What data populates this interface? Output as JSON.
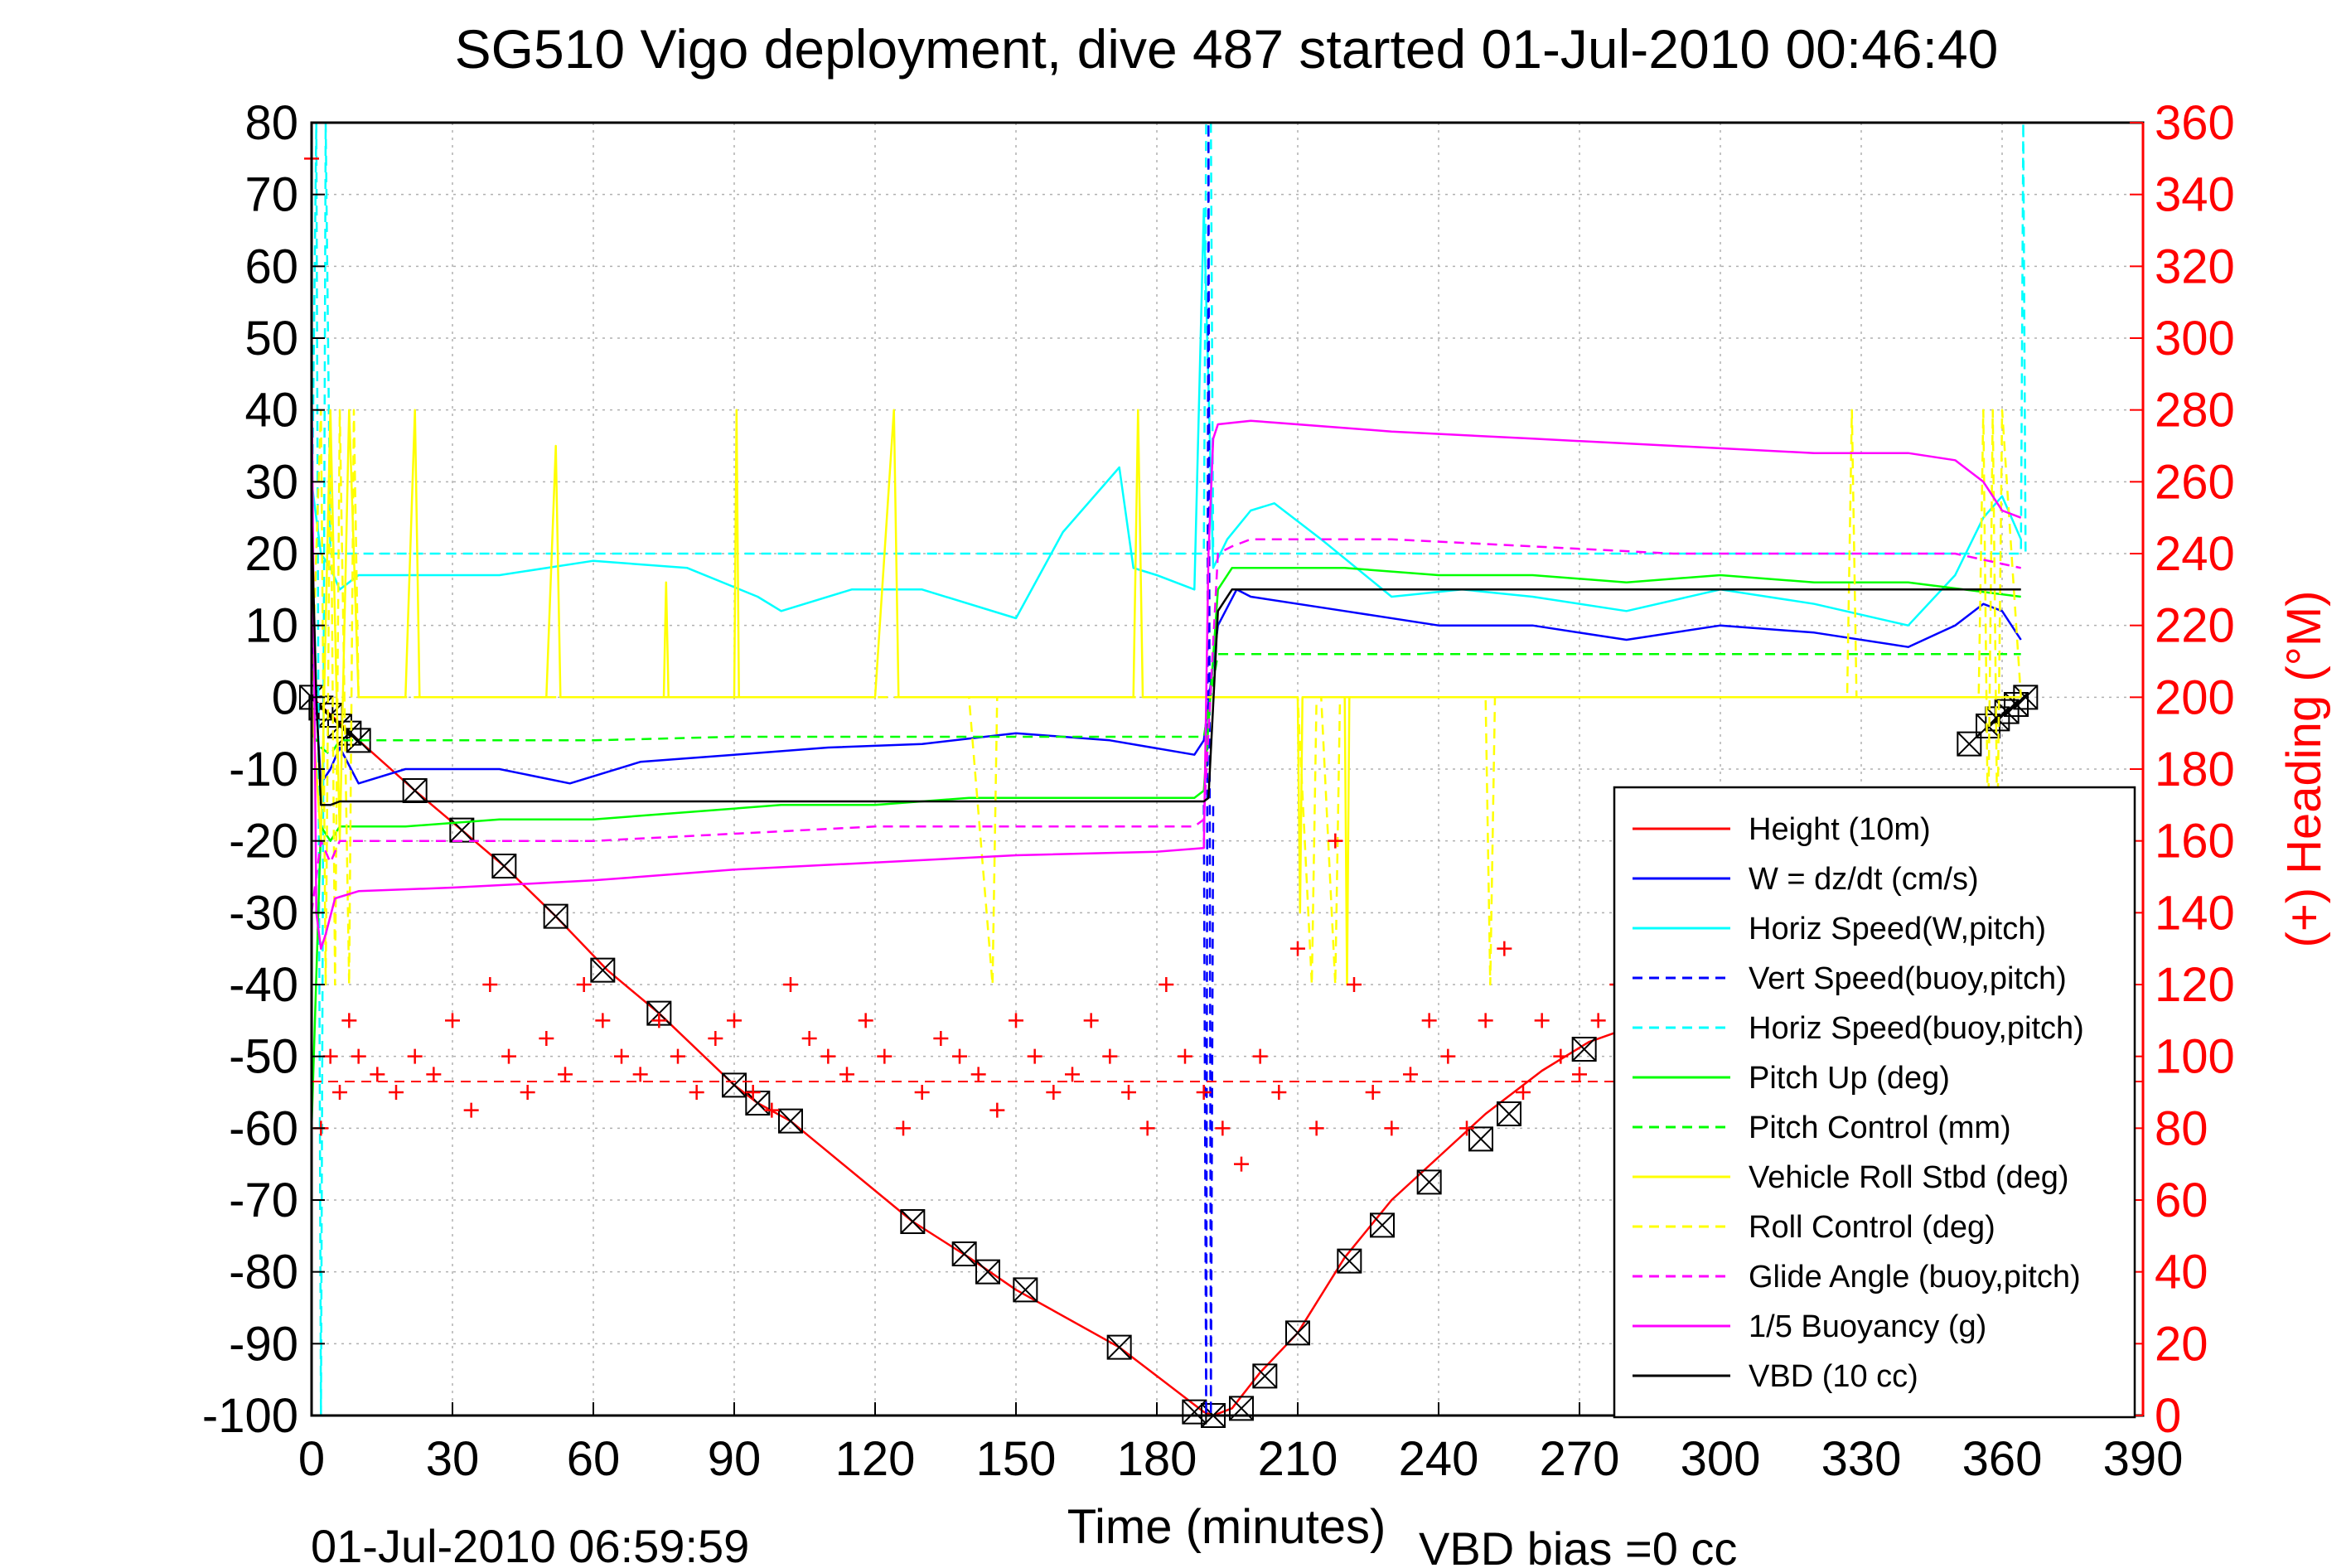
{
  "chart_data": {
    "type": "line",
    "title": "SG510 Vigo deployment, dive 487 started 01-Jul-2010 00:46:40",
    "xlabel": "Time (minutes)",
    "y2label": "(+) Heading (°M)",
    "footer_date": "01-Jul-2010 06:59:59",
    "footer_note": "VBD bias =0 cc",
    "xlim": [
      0,
      390
    ],
    "ylim": [
      -100,
      80
    ],
    "y2lim": [
      0,
      360
    ],
    "xticks": [
      0,
      30,
      60,
      90,
      120,
      150,
      180,
      210,
      240,
      270,
      300,
      330,
      360,
      390
    ],
    "yticks": [
      80,
      70,
      60,
      50,
      40,
      30,
      20,
      10,
      0,
      -10,
      -20,
      -30,
      -40,
      -50,
      -60,
      -70,
      -80,
      -90,
      -100
    ],
    "y2ticks": [
      360,
      340,
      320,
      300,
      280,
      260,
      240,
      220,
      200,
      180,
      160,
      140,
      120,
      100,
      80,
      60,
      40,
      20,
      0
    ],
    "grid": true,
    "legend_position": "bottom-right",
    "legend": [
      {
        "label": "Height (10m)",
        "color": "#ff0000",
        "dash": "solid"
      },
      {
        "label": "W = dz/dt (cm/s)",
        "color": "#0000ff",
        "dash": "solid"
      },
      {
        "label": "Horiz Speed(W,pitch)",
        "color": "#00ffff",
        "dash": "solid"
      },
      {
        "label": "Vert Speed(buoy,pitch)",
        "color": "#0000ff",
        "dash": "dashed"
      },
      {
        "label": "Horiz Speed(buoy,pitch)",
        "color": "#00ffff",
        "dash": "dashed"
      },
      {
        "label": "Pitch Up (deg)",
        "color": "#00ff00",
        "dash": "solid"
      },
      {
        "label": "Pitch Control (mm)",
        "color": "#00ff00",
        "dash": "dashed"
      },
      {
        "label": "Vehicle Roll Stbd (deg)",
        "color": "#ffff00",
        "dash": "solid"
      },
      {
        "label": "Roll Control (deg)",
        "color": "#ffff00",
        "dash": "dashed"
      },
      {
        "label": "Glide Angle (buoy,pitch)",
        "color": "#ff00ff",
        "dash": "dashed"
      },
      {
        "label": "1/5 Buoyancy (g)",
        "color": "#ff00ff",
        "dash": "solid"
      },
      {
        "label": "VBD (10 cc)",
        "color": "#000000",
        "dash": "solid"
      }
    ],
    "series": [
      {
        "name": "Height (10m)",
        "color": "#ff0000",
        "dash": "solid",
        "x": [
          0,
          5,
          10,
          22,
          32,
          41,
          52,
          63,
          74,
          90,
          95,
          102,
          128,
          140,
          150,
          172,
          190,
          192,
          196,
          202,
          210,
          220,
          230,
          240,
          250,
          262,
          272,
          285
        ],
        "y": [
          0,
          -3,
          -6,
          -13,
          -18.5,
          -23.5,
          -30.5,
          -38,
          -44,
          -54,
          -56.5,
          -59,
          -73,
          -78,
          -82.5,
          -90.5,
          -99.5,
          -100,
          -99,
          -94,
          -88.5,
          -78,
          -70,
          -64,
          -58,
          -52,
          -48,
          -45
        ]
      },
      {
        "name": "Height markers (10m)",
        "color": "#000000",
        "marker": "x-box",
        "x": [
          0,
          2,
          4,
          6,
          8,
          10,
          22,
          32,
          41,
          52,
          62,
          74,
          90,
          95,
          102,
          128,
          139,
          144,
          152,
          172,
          188,
          192,
          198,
          203,
          210,
          221,
          228,
          238,
          249,
          255,
          271,
          353,
          357,
          359,
          361,
          363,
          365
        ],
        "y": [
          0,
          -1.5,
          -2.5,
          -4,
          -5,
          -6,
          -13,
          -18.5,
          -23.5,
          -30.5,
          -38,
          -44,
          -54,
          -56.5,
          -59,
          -73,
          -77.5,
          -80,
          -82.5,
          -90.5,
          -99.5,
          -100,
          -99,
          -94.5,
          -88.5,
          -78.5,
          -73.5,
          -67.5,
          -61.5,
          -58,
          -49,
          -6.5,
          -4,
          -3,
          -2,
          -1,
          0
        ]
      },
      {
        "name": "W = dz/dt (cm/s)",
        "color": "#0000ff",
        "dash": "solid",
        "x": [
          0,
          2,
          4,
          6,
          10,
          20,
          40,
          55,
          70,
          90,
          110,
          130,
          150,
          170,
          188,
          190,
          193,
          197,
          200,
          220,
          240,
          260,
          280,
          300,
          320,
          340,
          350,
          356,
          360,
          364
        ],
        "y": [
          10,
          -12,
          -10,
          -7,
          -12,
          -10,
          -10,
          -12,
          -9,
          -8,
          -7,
          -6.5,
          -5,
          -6,
          -8,
          -6,
          10,
          15,
          14,
          12,
          10,
          10,
          8,
          10,
          9,
          7,
          10,
          13,
          12,
          8
        ]
      },
      {
        "name": "Horiz Speed(W,pitch)",
        "color": "#00ffff",
        "dash": "solid",
        "x": [
          0,
          2,
          4,
          6,
          10,
          20,
          40,
          60,
          80,
          95,
          100,
          115,
          130,
          150,
          160,
          172,
          175,
          180,
          188,
          190,
          192,
          195,
          200,
          205,
          215,
          230,
          245,
          260,
          280,
          300,
          320,
          340,
          350,
          356,
          360,
          364
        ],
        "y": [
          30,
          20,
          18,
          15,
          17,
          17,
          17,
          19,
          18,
          14,
          12,
          15,
          15,
          11,
          23,
          32,
          18,
          17,
          15,
          68,
          18,
          22,
          26,
          27,
          22,
          14,
          15,
          14,
          12,
          15,
          13,
          10,
          17,
          25,
          28,
          22
        ]
      },
      {
        "name": "Vert Speed(buoy,pitch)",
        "color": "#0000ff",
        "dash": "dashed",
        "x": [
          190,
          190.5,
          191,
          191.5,
          192
        ],
        "y": [
          -15,
          -100,
          80,
          -100,
          -15
        ]
      },
      {
        "name": "Horiz Speed(buoy,pitch)",
        "color": "#00ffff",
        "dash": "dashed",
        "x": [
          0,
          1,
          2,
          3,
          4,
          190,
          190.5,
          191.5,
          192,
          364,
          364.5,
          365
        ],
        "y": [
          20,
          80,
          -100,
          80,
          20,
          20,
          80,
          80,
          20,
          20,
          80,
          20
        ]
      },
      {
        "name": "Pitch Up (deg)",
        "color": "#00ff00",
        "dash": "solid",
        "x": [
          0,
          2,
          4,
          6,
          10,
          20,
          40,
          60,
          80,
          100,
          120,
          140,
          160,
          180,
          188,
          190,
          193,
          196,
          200,
          220,
          240,
          260,
          280,
          300,
          320,
          340,
          364
        ],
        "y": [
          -60,
          -18,
          -20,
          -18,
          -18,
          -18,
          -17,
          -17,
          -16,
          -15,
          -15,
          -14,
          -14,
          -14,
          -14,
          -13,
          15,
          18,
          18,
          18,
          17,
          17,
          16,
          17,
          16,
          16,
          14
        ]
      },
      {
        "name": "Pitch Control (mm)",
        "color": "#00ff00",
        "dash": "dashed",
        "x": [
          0,
          2,
          4,
          6,
          10,
          30,
          60,
          90,
          120,
          150,
          188,
          190,
          193,
          196,
          364
        ],
        "y": [
          -5,
          -7,
          -8,
          -6,
          -6,
          -6,
          -6,
          -5.5,
          -5.5,
          -5.5,
          -5.5,
          -5.5,
          6,
          6,
          6
        ]
      },
      {
        "name": "Vehicle Roll Stbd (deg)",
        "color": "#ffff00",
        "dash": "solid",
        "x": [
          0,
          2,
          4,
          6,
          8,
          10,
          20,
          22,
          23,
          24,
          50,
          52,
          53,
          54,
          75,
          75.5,
          76,
          90,
          90.5,
          91,
          120,
          124,
          125,
          130,
          175,
          176,
          177,
          190,
          193,
          200,
          210,
          210.5,
          211,
          220,
          220.5,
          221,
          230,
          240,
          260,
          300,
          330,
          340,
          364
        ],
        "y": [
          0,
          -20,
          40,
          -20,
          40,
          0,
          0,
          40,
          0,
          0,
          0,
          35,
          0,
          0,
          0,
          16,
          0,
          0,
          40,
          0,
          0,
          40,
          0,
          0,
          0,
          40,
          0,
          0,
          0,
          0,
          0,
          -30,
          0,
          0,
          -40,
          0,
          0,
          0,
          0,
          0,
          0,
          0,
          0
        ]
      },
      {
        "name": "Roll Control (deg)",
        "color": "#ffff00",
        "dash": "dashed",
        "x": [
          0,
          2,
          3,
          4,
          5,
          6,
          8,
          9,
          10,
          30,
          90,
          140,
          145,
          146,
          147,
          190,
          210,
          213,
          214,
          215,
          218,
          219,
          220,
          240,
          250,
          251,
          252,
          327,
          328,
          329,
          355,
          356,
          357,
          358,
          359,
          360,
          364
        ],
        "y": [
          0,
          40,
          -40,
          40,
          -40,
          40,
          -40,
          40,
          0,
          0,
          0,
          0,
          -40,
          0,
          0,
          0,
          0,
          -40,
          0,
          0,
          -40,
          0,
          0,
          0,
          0,
          -40,
          0,
          0,
          40,
          0,
          0,
          40,
          -20,
          40,
          -20,
          40,
          0
        ]
      },
      {
        "name": "Glide Angle (buoy,pitch)",
        "color": "#ff00ff",
        "dash": "dashed",
        "x": [
          0,
          2,
          4,
          6,
          10,
          30,
          60,
          90,
          120,
          150,
          188,
          190,
          193,
          196,
          200,
          230,
          260,
          290,
          320,
          350,
          364
        ],
        "y": [
          -30,
          -20,
          -23,
          -20,
          -20,
          -20,
          -20,
          -19,
          -18,
          -18,
          -18,
          -17,
          20,
          21,
          22,
          22,
          21,
          20,
          20,
          20,
          18
        ]
      },
      {
        "name": "1/5 Buoyancy (g)",
        "color": "#ff00ff",
        "dash": "solid",
        "x": [
          0,
          1,
          2,
          3,
          5,
          10,
          30,
          60,
          90,
          120,
          150,
          180,
          190,
          191,
          192,
          193,
          200,
          230,
          260,
          290,
          320,
          330,
          340,
          350,
          356,
          360,
          364
        ],
        "y": [
          45,
          -30,
          -35,
          -33,
          -28,
          -27,
          -26.5,
          -25.5,
          -24,
          -23,
          -22,
          -21.5,
          -21,
          20,
          36,
          38,
          38.5,
          37,
          36,
          35,
          34,
          34,
          34,
          33,
          30,
          26,
          25
        ]
      },
      {
        "name": "VBD (10 cc)",
        "color": "#000000",
        "dash": "solid",
        "x": [
          0,
          1,
          2,
          4,
          6,
          190,
          191,
          193,
          196,
          200,
          364
        ],
        "y": [
          25,
          0,
          -15,
          -15,
          -14.5,
          -14.5,
          -14,
          12,
          15,
          15,
          15
        ]
      },
      {
        "name": "Heading (°M)",
        "color": "#ff0000",
        "marker": "plus",
        "axis": "right",
        "mean": 93,
        "x": [
          0,
          2,
          4,
          6,
          8,
          10,
          14,
          18,
          22,
          26,
          30,
          34,
          38,
          42,
          46,
          50,
          54,
          58,
          62,
          66,
          70,
          74,
          78,
          82,
          86,
          90,
          94,
          98,
          102,
          106,
          110,
          114,
          118,
          122,
          126,
          130,
          134,
          138,
          142,
          146,
          150,
          154,
          158,
          162,
          166,
          170,
          174,
          178,
          182,
          186,
          190,
          194,
          198,
          202,
          206,
          210,
          214,
          218,
          222,
          226,
          230,
          234,
          238,
          242,
          246,
          250,
          254,
          258,
          262,
          266,
          270,
          274,
          278,
          282,
          286,
          290
        ],
        "y": [
          350,
          80,
          100,
          90,
          110,
          100,
          95,
          90,
          100,
          95,
          110,
          85,
          120,
          100,
          90,
          105,
          95,
          120,
          110,
          100,
          95,
          110,
          100,
          90,
          105,
          110,
          90,
          85,
          120,
          105,
          100,
          95,
          110,
          100,
          80,
          90,
          105,
          100,
          95,
          85,
          110,
          100,
          90,
          95,
          110,
          100,
          90,
          80,
          120,
          100,
          90,
          80,
          70,
          100,
          90,
          130,
          80,
          160,
          120,
          90,
          80,
          95,
          110,
          100,
          80,
          110,
          130,
          90,
          110,
          100,
          95,
          110,
          120,
          100,
          95,
          85
        ]
      }
    ]
  }
}
